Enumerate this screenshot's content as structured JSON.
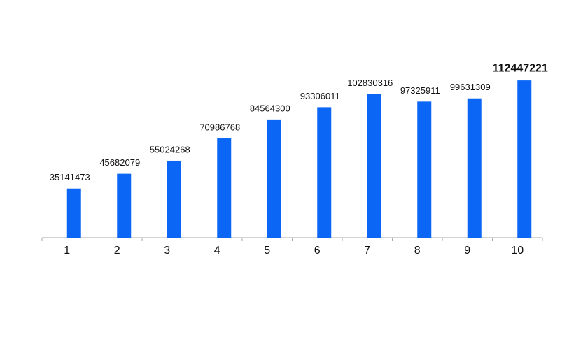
{
  "chart_data": {
    "type": "bar",
    "categories": [
      "1",
      "2",
      "3",
      "4",
      "5",
      "6",
      "7",
      "8",
      "9",
      "10"
    ],
    "values": [
      35141473,
      45682079,
      55024268,
      70986768,
      84564300,
      93306011,
      102830316,
      97325911,
      99631309,
      112447221
    ],
    "color": "#0b66f6",
    "ylim": [
      0,
      120000000
    ]
  }
}
